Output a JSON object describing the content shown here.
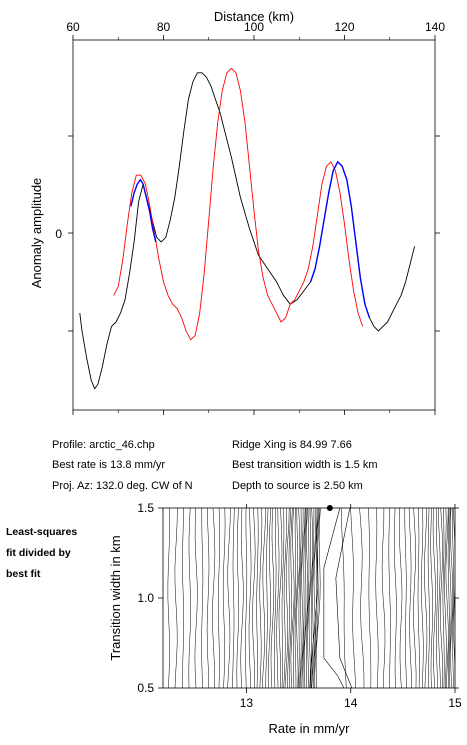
{
  "chart_data": [
    {
      "type": "line",
      "xlabel": "Distance (km)",
      "ylabel": "Anomaly amplitude",
      "xlim": [
        60,
        140
      ],
      "xticks": [
        "60",
        "80",
        "100",
        "120",
        "140"
      ],
      "yticks": [
        "0"
      ],
      "ylim": [
        -3.5,
        4.2
      ],
      "colors": {
        "observed": "#000000",
        "model": "#ff0000",
        "fit_window": "#0000ff"
      },
      "series": [
        {
          "x": [
            61.5,
            62,
            63,
            64,
            64.8,
            65.5,
            66.5,
            67.5,
            68.5,
            69.5,
            70.5,
            71.5,
            72.5,
            73.5,
            74.5,
            75.5,
            76.5,
            77.5,
            78.5,
            79.5,
            80.5,
            81.5,
            82.5,
            83.5,
            84.5,
            85.5,
            86.5,
            87.5,
            88.5,
            89.5,
            90.5,
            91.5,
            92.5,
            93.5,
            95,
            97,
            99,
            101,
            103,
            105,
            106.5,
            108,
            109.5,
            111,
            112.5,
            113.5,
            114.5,
            115.5,
            116.5,
            117.5,
            118.5,
            119.5,
            120.5,
            121.5,
            122.5,
            123.5,
            124.5,
            125.5,
            126.5,
            127.5,
            128.5,
            129.5,
            130.5,
            131.5,
            132.5,
            133.5,
            134.5,
            135.5
          ],
          "values": [
            -1.8,
            -2.2,
            -2.8,
            -3.3,
            -3.5,
            -3.4,
            -3.0,
            -2.5,
            -2.1,
            -2.0,
            -1.8,
            -1.5,
            -0.9,
            -0.2,
            0.7,
            1.1,
            0.7,
            0.3,
            -0.1,
            -0.2,
            -0.1,
            0.3,
            0.8,
            1.5,
            2.3,
            3.0,
            3.4,
            3.6,
            3.6,
            3.5,
            3.3,
            3.0,
            2.7,
            2.3,
            1.7,
            0.8,
            0.1,
            -0.5,
            -0.8,
            -1.1,
            -1.4,
            -1.6,
            -1.5,
            -1.3,
            -1.1,
            -0.8,
            -0.3,
            0.3,
            0.9,
            1.4,
            1.6,
            1.5,
            1.2,
            0.6,
            -0.2,
            -1.0,
            -1.6,
            -1.9,
            -2.1,
            -2.2,
            -2.1,
            -2.0,
            -1.8,
            -1.6,
            -1.4,
            -1.1,
            -0.7,
            -0.3
          ]
        },
        {
          "x": [
            69,
            70,
            71,
            72,
            73,
            74,
            75,
            76,
            77,
            78,
            79,
            80,
            81,
            82,
            83,
            84,
            85,
            86,
            87,
            88,
            89,
            90,
            91,
            92,
            93,
            94,
            95,
            96,
            97,
            98,
            99,
            100,
            101,
            102,
            103,
            104,
            105,
            106,
            107,
            108,
            109,
            110,
            111,
            112,
            113,
            114,
            115,
            116,
            117,
            118,
            119,
            120,
            121,
            122,
            123,
            124
          ],
          "values": [
            -1.4,
            -1.2,
            -0.6,
            0.2,
            0.9,
            1.3,
            1.3,
            1.1,
            0.6,
            0.0,
            -0.6,
            -1.1,
            -1.4,
            -1.6,
            -1.7,
            -1.9,
            -2.2,
            -2.4,
            -2.3,
            -1.8,
            -0.9,
            0.3,
            1.5,
            2.5,
            3.2,
            3.6,
            3.7,
            3.6,
            3.2,
            2.5,
            1.5,
            0.5,
            -0.4,
            -1.0,
            -1.4,
            -1.6,
            -1.8,
            -2.0,
            -1.9,
            -1.6,
            -1.5,
            -1.3,
            -1.1,
            -0.8,
            -0.3,
            0.4,
            1.1,
            1.5,
            1.6,
            1.4,
            0.9,
            0.2,
            -0.6,
            -1.3,
            -1.8,
            -2.1
          ]
        },
        {
          "x": [
            72.8,
            73.5,
            74.2,
            74.9,
            75.5,
            76.2,
            76.9,
            77.6,
            78.3
          ],
          "values": [
            0.6,
            0.9,
            1.1,
            1.2,
            1.1,
            0.8,
            0.5,
            0.1,
            -0.2
          ]
        },
        {
          "x": [
            112.5,
            113.5,
            114.5,
            115.5,
            116.5,
            117.5,
            118.5,
            119.5,
            120.5,
            121.5,
            122.5,
            123.5,
            124.5,
            125.5
          ],
          "values": [
            -1.1,
            -0.8,
            -0.3,
            0.3,
            0.9,
            1.4,
            1.6,
            1.5,
            1.2,
            0.6,
            -0.2,
            -1.0,
            -1.6,
            -1.9
          ]
        }
      ]
    },
    {
      "type": "contour",
      "xlabel": "Rate in mm/yr",
      "ylabel": "Transition width in km",
      "xlim": [
        12.2,
        15
      ],
      "ylim": [
        0.5,
        1.5
      ],
      "xticks": [
        "13",
        "14",
        "15"
      ],
      "yticks": [
        "0.5",
        "1.0",
        "1.5"
      ],
      "best_fit_point": {
        "x": 13.8,
        "y": 1.5
      }
    }
  ],
  "info": {
    "profile": "Profile: arctic_46.chp",
    "best_rate": "Best rate is 13.8 mm/yr",
    "proj_az": "Proj. Az: 132.0 deg. CW of N",
    "ridge_xing": "Ridge Xing is 84.99 7.66",
    "best_transition": "Best transition width is 1.5 km",
    "depth": "Depth to source is   2.50 km"
  },
  "side_label": [
    "Least-squares",
    "fit divided by",
    "best fit"
  ]
}
